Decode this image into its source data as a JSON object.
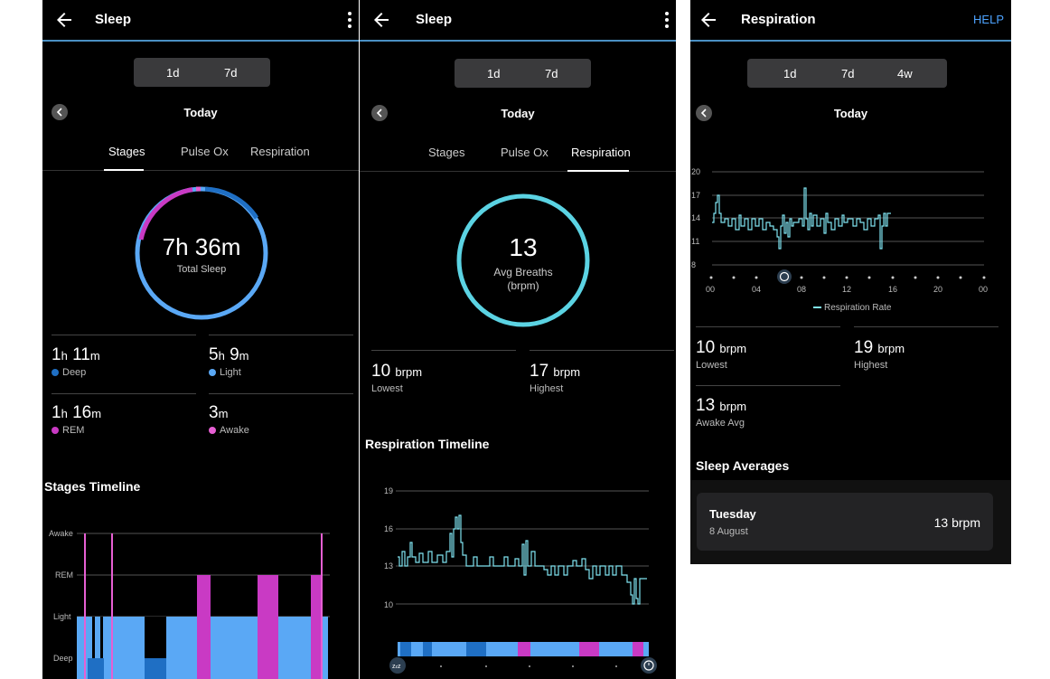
{
  "panel1": {
    "title": "Sleep",
    "seg": [
      "1d",
      "7d"
    ],
    "date": "Today",
    "tabs": [
      "Stages",
      "Pulse Ox",
      "Respiration"
    ],
    "ring_value": "7h 36m",
    "ring_label": "Total Sleep",
    "stats": [
      {
        "h": "1",
        "hu": "h",
        "m": "11",
        "mu": "m",
        "label": "Deep",
        "color": "#1f6fc4"
      },
      {
        "h": "5",
        "hu": "h",
        "m": "9",
        "mu": "m",
        "label": "Light",
        "color": "#5aa8f5"
      },
      {
        "h": "1",
        "hu": "h",
        "m": "16",
        "mu": "m",
        "label": "REM",
        "color": "#c93ac4"
      },
      {
        "h": "",
        "hu": "",
        "m": "3",
        "mu": "m",
        "label": "Awake",
        "color": "#e65fd3"
      }
    ],
    "timeline_title": "Stages Timeline",
    "timeline_axis": [
      "Awake",
      "REM",
      "Light",
      "Deep"
    ]
  },
  "panel2": {
    "title": "Sleep",
    "seg": [
      "1d",
      "7d"
    ],
    "date": "Today",
    "tabs": [
      "Stages",
      "Pulse Ox",
      "Respiration"
    ],
    "ring_value": "13",
    "ring_label1": "Avg Breaths",
    "ring_label2": "(brpm)",
    "lowest_val": "10",
    "lowest_unit": "brpm",
    "lowest_label": "Lowest",
    "highest_val": "17",
    "highest_unit": "brpm",
    "highest_label": "Highest",
    "timeline_title": "Respiration Timeline",
    "y_ticks": [
      "19",
      "16",
      "13",
      "10"
    ],
    "x_badge_start": "zzz",
    "x_badge_end": "alarm"
  },
  "panel3": {
    "title": "Respiration",
    "help": "HELP",
    "seg": [
      "1d",
      "7d",
      "4w"
    ],
    "date": "Today",
    "y_ticks": [
      "20",
      "17",
      "14",
      "11",
      "8"
    ],
    "x_ticks": [
      "00",
      "04",
      "08",
      "12",
      "16",
      "20",
      "00"
    ],
    "legend": "Respiration Rate",
    "lowest_val": "10",
    "lowest_unit": "brpm",
    "lowest_label": "Lowest",
    "highest_val": "19",
    "highest_unit": "brpm",
    "highest_label": "Highest",
    "awake_val": "13",
    "awake_unit": "brpm",
    "awake_label": "Awake Avg",
    "averages_title": "Sleep Averages",
    "avg_day": "Tuesday",
    "avg_date": "8 August",
    "avg_value": "13 brpm"
  },
  "colors": {
    "deep": "#1f6fc4",
    "light": "#5aa8f5",
    "rem": "#c93ac4",
    "awake": "#e65fd3",
    "resp": "#7fe3f0",
    "ring2": "#5bd3e3"
  }
}
